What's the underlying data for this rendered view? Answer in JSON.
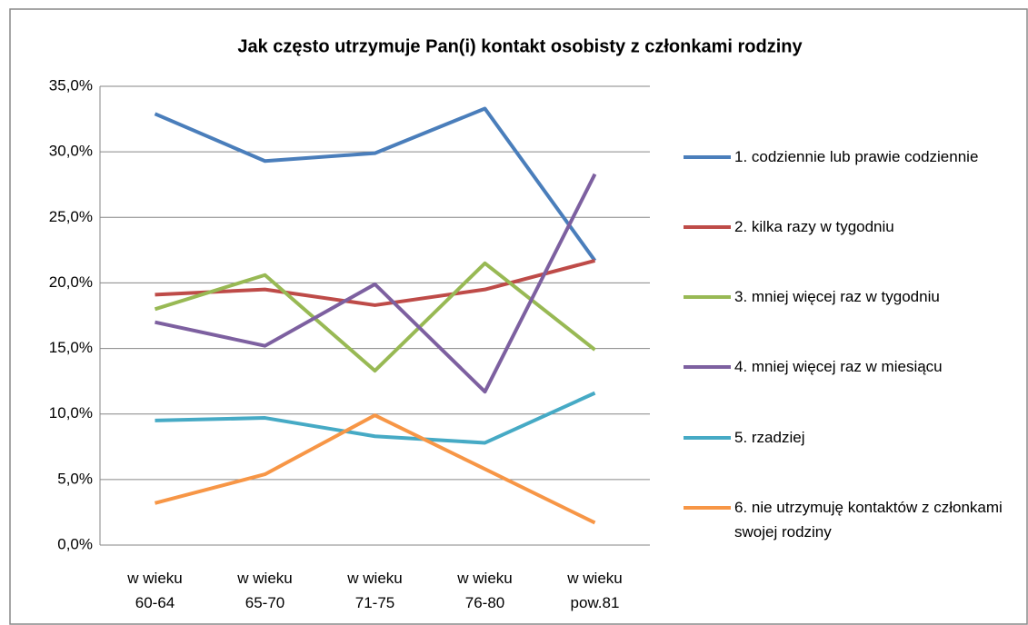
{
  "chart_data": {
    "type": "line",
    "title": "Jak często utrzymuje Pan(i) kontakt osobisty z członkami rodziny",
    "categories": [
      "w wieku 60-64",
      "w wieku 65-70",
      "w wieku 71-75",
      "w wieku 76-80",
      "w wieku pow.81"
    ],
    "series": [
      {
        "name": "1. codziennie lub prawie codziennie",
        "color": "#4a7ebb",
        "values": [
          32.9,
          29.3,
          29.9,
          33.3,
          21.7
        ]
      },
      {
        "name": "2. kilka razy w tygodniu",
        "color": "#be4b48",
        "values": [
          19.1,
          19.5,
          18.3,
          19.5,
          21.7
        ]
      },
      {
        "name": "3. mniej więcej raz w tygodniu",
        "color": "#98b954",
        "values": [
          18.0,
          20.6,
          13.3,
          21.5,
          14.9
        ]
      },
      {
        "name": "4. mniej więcej raz w miesiącu",
        "color": "#7d60a0",
        "values": [
          17.0,
          15.2,
          19.9,
          11.7,
          28.3
        ]
      },
      {
        "name": "5. rzadziej",
        "color": "#46aac5",
        "values": [
          9.5,
          9.7,
          8.3,
          7.8,
          11.6
        ]
      },
      {
        "name": "6. nie utrzymuję kontaktów z członkami swojej rodziny",
        "color": "#f79646",
        "values": [
          3.2,
          5.4,
          9.9,
          5.8,
          1.7
        ]
      }
    ],
    "ylim": [
      0,
      35
    ],
    "yticks": [
      {
        "value": 0,
        "label": "0,0%"
      },
      {
        "value": 5,
        "label": "5,0%"
      },
      {
        "value": 10,
        "label": "10,0%"
      },
      {
        "value": 15,
        "label": "15,0%"
      },
      {
        "value": 20,
        "label": "20,0%"
      },
      {
        "value": 25,
        "label": "25,0%"
      },
      {
        "value": 30,
        "label": "30,0%"
      },
      {
        "value": 35,
        "label": "35,0%"
      }
    ],
    "grid": true
  }
}
